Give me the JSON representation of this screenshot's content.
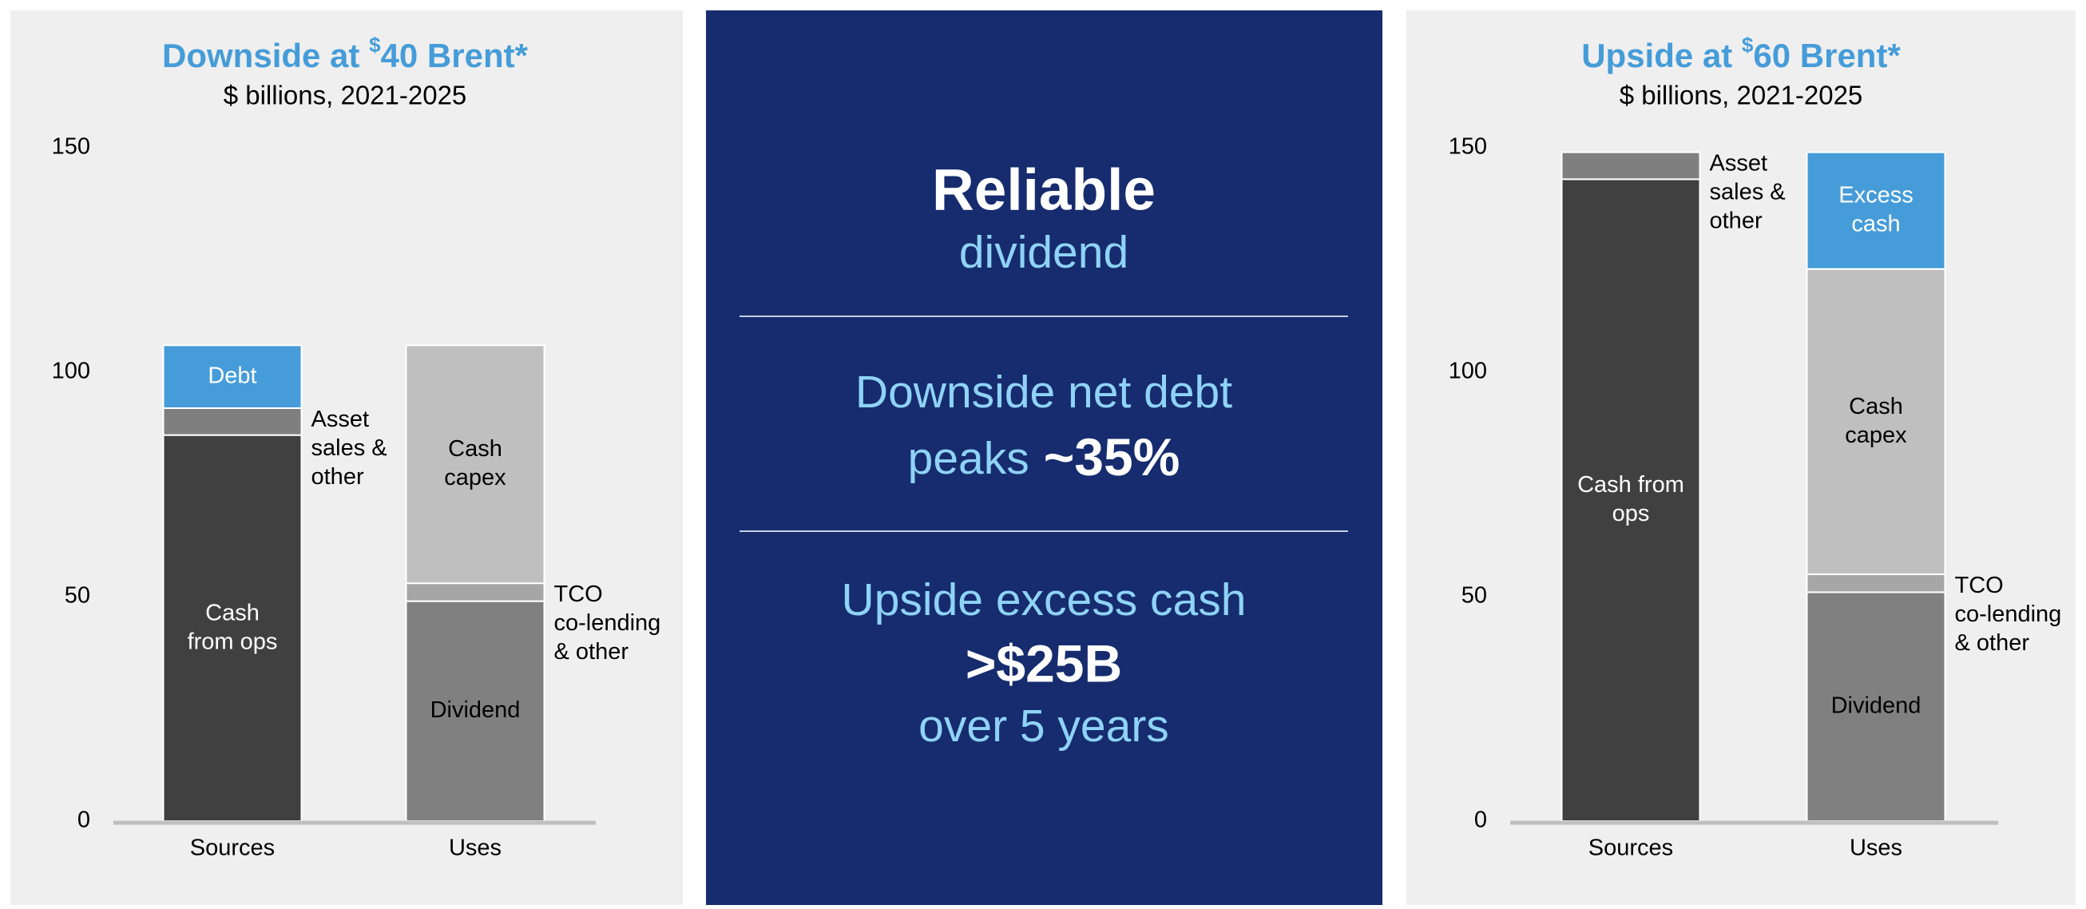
{
  "chart_data": [
    {
      "type": "stacked-bar",
      "title": "Downside at $40 Brent*",
      "subtitle": "$ billions, 2021-2025",
      "categories": [
        "Sources",
        "Uses"
      ],
      "ylim": [
        0,
        150
      ],
      "yticks": [
        0,
        50,
        100,
        150
      ],
      "grid": false,
      "series": [
        {
          "name": "Cash\nfrom ops",
          "color": "#404040",
          "label_color": "#ffffff",
          "label_position": "inside",
          "values": [
            86,
            null
          ]
        },
        {
          "name": "Asset\nsales &\nother",
          "color": "#7f7f7f",
          "label_color": "#000000",
          "label_position": "right",
          "values": [
            6,
            null
          ]
        },
        {
          "name": "Debt",
          "color": "#459cd8",
          "label_color": "#ffffff",
          "label_position": "inside",
          "values": [
            14,
            null
          ]
        },
        {
          "name": "Dividend",
          "color": "#808080",
          "label_color": "#000000",
          "label_position": "inside",
          "values": [
            null,
            49
          ]
        },
        {
          "name": "TCO\nco-lending\n& other",
          "color": "#a6a6a6",
          "label_color": "#000000",
          "label_position": "right",
          "values": [
            null,
            4
          ]
        },
        {
          "name": "Cash\ncapex",
          "color": "#bfbfbf",
          "label_color": "#000000",
          "label_position": "inside",
          "values": [
            null,
            53
          ]
        }
      ]
    },
    {
      "type": "stacked-bar",
      "title": "Upside at $60 Brent*",
      "subtitle": "$ billions, 2021-2025",
      "categories": [
        "Sources",
        "Uses"
      ],
      "ylim": [
        0,
        150
      ],
      "yticks": [
        0,
        50,
        100,
        150
      ],
      "grid": false,
      "series": [
        {
          "name": "Cash from\nops",
          "color": "#404040",
          "label_color": "#ffffff",
          "label_position": "inside",
          "values": [
            143,
            null
          ]
        },
        {
          "name": "Asset\nsales &\nother",
          "color": "#7f7f7f",
          "label_color": "#000000",
          "label_position": "right",
          "values": [
            6,
            null
          ]
        },
        {
          "name": "Dividend",
          "color": "#808080",
          "label_color": "#000000",
          "label_position": "inside",
          "values": [
            null,
            51
          ]
        },
        {
          "name": "TCO\nco-lending\n& other",
          "color": "#a6a6a6",
          "label_color": "#000000",
          "label_position": "right",
          "values": [
            null,
            4
          ]
        },
        {
          "name": "Cash\ncapex",
          "color": "#bfbfbf",
          "label_color": "#000000",
          "label_position": "inside",
          "values": [
            null,
            68
          ]
        },
        {
          "name": "Excess\ncash",
          "color": "#459cd8",
          "label_color": "#ffffff",
          "label_position": "inside",
          "values": [
            null,
            26
          ]
        }
      ]
    }
  ],
  "panel": {
    "heading": "Reliable",
    "heading_sub": "dividend",
    "debt_line1": "Downside net debt",
    "debt_line2": "peaks",
    "debt_value": "~35%",
    "cash_line1": "Upside excess cash",
    "cash_value": ">$25B",
    "cash_line3": "over 5 years"
  }
}
